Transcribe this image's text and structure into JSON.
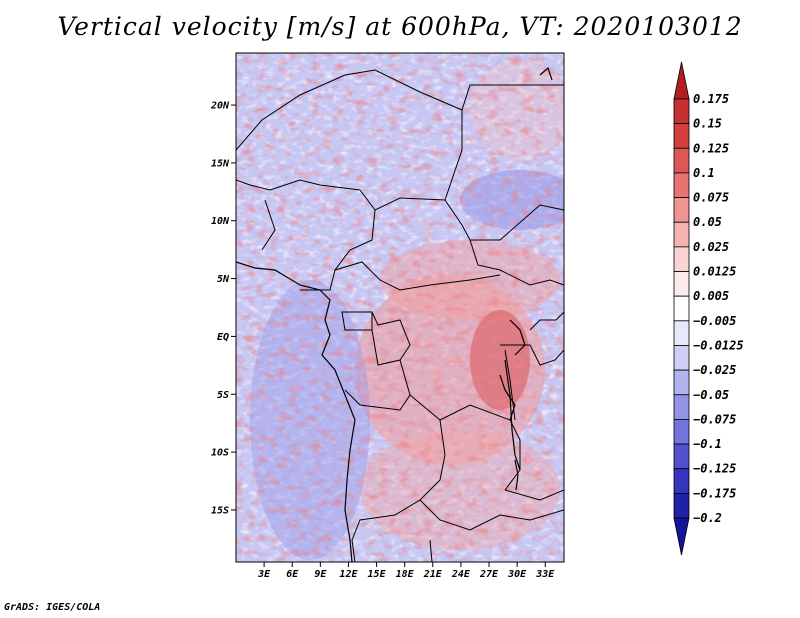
{
  "title": "Vertical velocity [m/s] at 600hPa, VT: 2020103012",
  "credit": "GrADS: IGES/COLA",
  "map": {
    "lat_labels": [
      "20N",
      "15N",
      "10N",
      "5N",
      "EQ",
      "5S",
      "10S",
      "15S"
    ],
    "lat_values": [
      20,
      15,
      10,
      5,
      0,
      -5,
      -10,
      -15
    ],
    "lon_labels": [
      "3E",
      "6E",
      "9E",
      "12E",
      "15E",
      "18E",
      "21E",
      "24E",
      "27E",
      "30E",
      "33E"
    ],
    "lon_values": [
      3,
      6,
      9,
      12,
      15,
      18,
      21,
      24,
      27,
      30,
      33
    ],
    "lon_range": [
      0,
      35
    ],
    "lat_range": [
      -19.5,
      24.5
    ]
  },
  "colorbar": {
    "labels": [
      "0.175",
      "0.15",
      "0.125",
      "0.1",
      "0.075",
      "0.05",
      "0.025",
      "0.0125",
      "0.005",
      "−0.005",
      "−0.0125",
      "−0.025",
      "−0.05",
      "−0.075",
      "−0.1",
      "−0.125",
      "−0.175",
      "−0.2"
    ],
    "colors": [
      "#b41e23",
      "#c53030",
      "#d33f3f",
      "#df5656",
      "#e87373",
      "#f09494",
      "#f6b3b3",
      "#fbd3d3",
      "#fdebeb",
      "#ffffff",
      "#e8e8fb",
      "#cfcff6",
      "#b3b3f0",
      "#9393e8",
      "#7474dd",
      "#5151cf",
      "#3434bf",
      "#2020a8",
      "#14149a"
    ]
  }
}
